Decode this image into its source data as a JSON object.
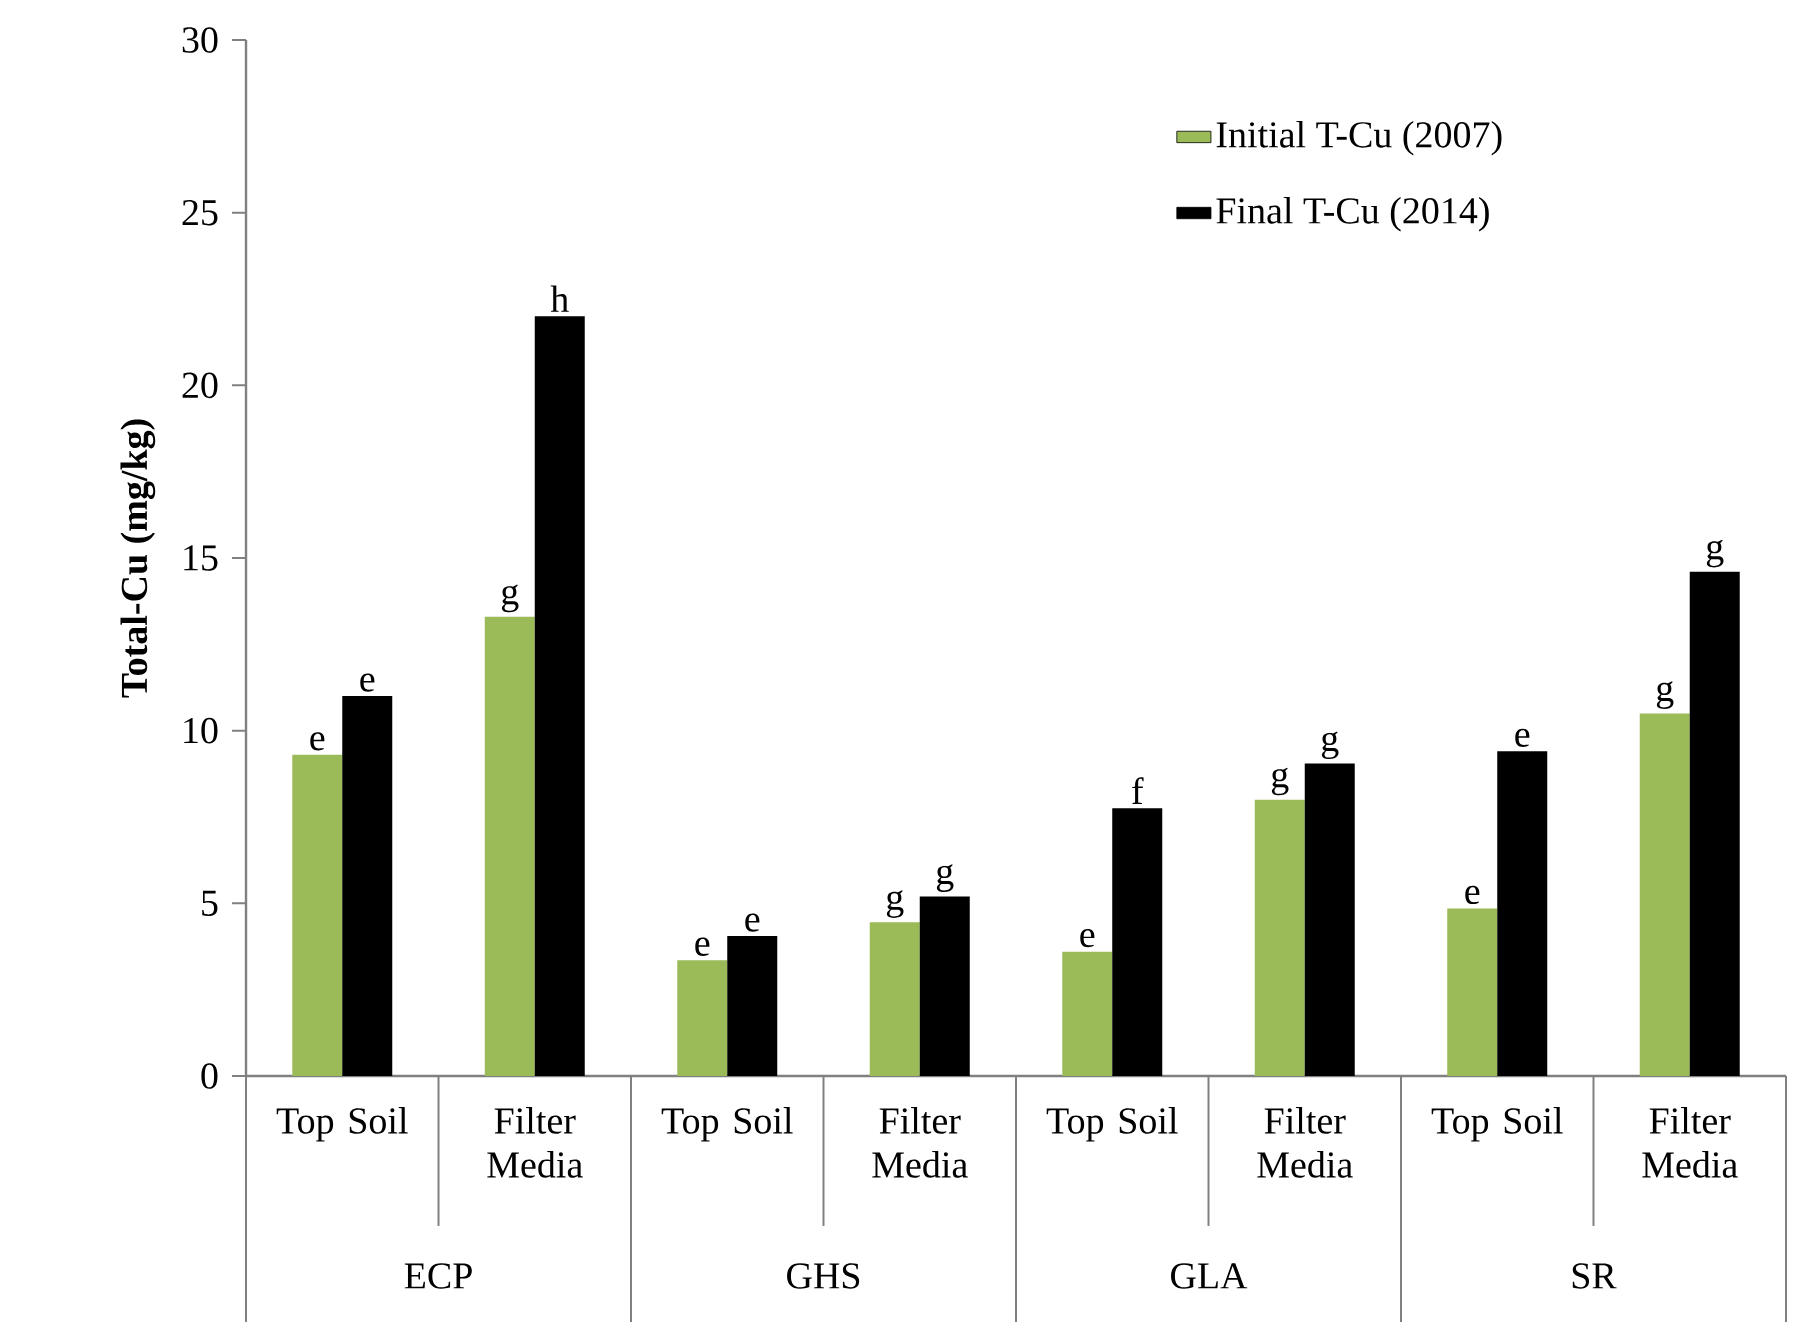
{
  "chart_data": {
    "type": "bar",
    "ylabel": "Total-Cu (mg/kg)",
    "categories": [
      "Top Soil",
      "Filter Media",
      "Top Soil",
      "Filter Media",
      "Top Soil",
      "Filter Media",
      "Top Soil",
      "Filter Media"
    ],
    "series": [
      {
        "name": "Initial T-Cu (2007)",
        "color": "#9bbb59",
        "values": [
          9.3,
          13.3,
          3.35,
          4.45,
          3.6,
          8.0,
          4.85,
          10.5
        ],
        "value_labels": [
          "e",
          "g",
          "e",
          "g",
          "e",
          "g",
          "e",
          "g"
        ]
      },
      {
        "name": "Final T-Cu (2014)",
        "color": "#000000",
        "values": [
          11.0,
          22.0,
          4.05,
          5.2,
          7.75,
          9.05,
          9.4,
          14.6
        ],
        "value_labels": [
          "e",
          "h",
          "e",
          "g",
          "f",
          "g",
          "e",
          "g"
        ]
      }
    ],
    "annotations": [
      "ECP",
      "GHS",
      "GLA",
      "SR"
    ],
    "ylim": [
      0,
      30
    ],
    "yticks": [
      0,
      5,
      10,
      15,
      20,
      25,
      30
    ],
    "legend": "top right"
  }
}
